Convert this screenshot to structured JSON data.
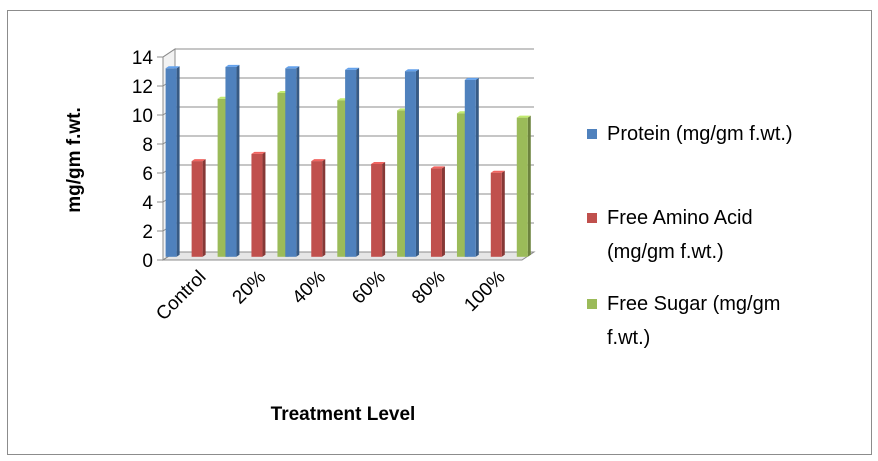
{
  "chart_data": {
    "type": "bar",
    "style": "3d-clustered-column",
    "categories": [
      "Control",
      "20%",
      "40%",
      "60%",
      "80%",
      "100%"
    ],
    "series": [
      {
        "name": "Protein (mg/gm f.wt.)",
        "legend_lines": [
          "Protein (mg/gm f.wt.)"
        ],
        "color": "#4f81bd",
        "values": [
          13.0,
          13.1,
          13.0,
          12.9,
          12.8,
          12.2
        ]
      },
      {
        "name": "Free Amino Acid (mg/gm f.wt.)",
        "legend_lines": [
          "Free Amino Acid",
          "(mg/gm f.wt.)"
        ],
        "color": "#c0504d",
        "values": [
          6.6,
          7.1,
          6.6,
          6.4,
          6.1,
          5.8
        ]
      },
      {
        "name": "Free Sugar (mg/gm f.wt.)",
        "legend_lines": [
          "Free Sugar   (mg/gm",
          "f.wt.)"
        ],
        "color": "#9bbb59",
        "values": [
          10.9,
          11.3,
          10.8,
          10.1,
          9.9,
          9.6
        ]
      }
    ],
    "title": "",
    "xlabel": "Treatment Level",
    "ylabel": "mg/gm f.wt.",
    "ylim": [
      0,
      14
    ],
    "yticks": [
      0,
      2,
      4,
      6,
      8,
      10,
      12,
      14
    ],
    "grid": true,
    "legend": "right"
  }
}
